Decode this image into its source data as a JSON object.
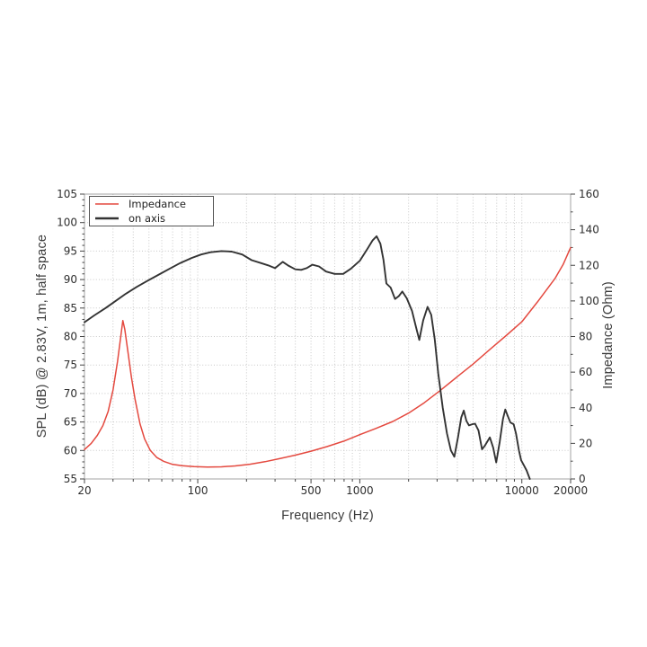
{
  "chart_data": {
    "type": "line",
    "title": "",
    "xlabel": "Frequency (Hz)",
    "ylabel_left": "SPL (dB) @ 2.83V, 1m, half space",
    "ylabel_right": "Impedance (Ohm)",
    "x_scale": "log",
    "x_range": [
      20,
      20000
    ],
    "x_ticks_labeled": [
      {
        "value": 20,
        "label": "20"
      },
      {
        "value": 100,
        "label": "100"
      },
      {
        "value": 500,
        "label": "500"
      },
      {
        "value": 1000,
        "label": "1000"
      },
      {
        "value": 10000,
        "label": "10000"
      },
      {
        "value": 20000,
        "label": "20000"
      }
    ],
    "y_left": {
      "min": 55,
      "max": 105,
      "tick_step": 5,
      "minor_step": 1,
      "tick_labels": [
        "55",
        "60",
        "65",
        "70",
        "75",
        "80",
        "85",
        "90",
        "95",
        "100",
        "105"
      ]
    },
    "y_right": {
      "min": 0,
      "max": 160,
      "tick_step": 20,
      "minor_step": 10,
      "tick_labels": [
        "0",
        "20",
        "40",
        "60",
        "80",
        "100",
        "120",
        "140",
        "160"
      ]
    },
    "grid": "dotted, vertical at log minor positions, horizontal every 5 dB",
    "legend_position": "upper left",
    "legend": [
      {
        "label": "Impedance",
        "color": "#e4493f"
      },
      {
        "label": "on axis",
        "color": "#333333"
      }
    ],
    "series": [
      {
        "name": "Impedance",
        "axis": "right",
        "units": "Ohm",
        "color": "#e4493f",
        "points": [
          [
            20,
            16.5
          ],
          [
            22,
            20
          ],
          [
            24,
            24.5
          ],
          [
            26,
            30
          ],
          [
            28,
            38
          ],
          [
            30,
            50
          ],
          [
            32,
            66
          ],
          [
            33.5,
            80
          ],
          [
            34.5,
            89
          ],
          [
            35.5,
            84
          ],
          [
            37,
            72
          ],
          [
            39,
            57
          ],
          [
            41,
            45
          ],
          [
            44,
            31
          ],
          [
            47,
            22.5
          ],
          [
            51,
            16
          ],
          [
            56,
            12
          ],
          [
            62,
            9.8
          ],
          [
            70,
            8.2
          ],
          [
            80,
            7.4
          ],
          [
            95,
            6.9
          ],
          [
            115,
            6.7
          ],
          [
            140,
            6.8
          ],
          [
            170,
            7.3
          ],
          [
            210,
            8.3
          ],
          [
            260,
            9.7
          ],
          [
            320,
            11.4
          ],
          [
            400,
            13.4
          ],
          [
            500,
            15.6
          ],
          [
            630,
            18.2
          ],
          [
            800,
            21.3
          ],
          [
            1000,
            24.9
          ],
          [
            1250,
            28.3
          ],
          [
            1600,
            32.3
          ],
          [
            2000,
            37.0
          ],
          [
            2500,
            42.8
          ],
          [
            3150,
            49.8
          ],
          [
            4000,
            57.5
          ],
          [
            5000,
            64.5
          ],
          [
            6300,
            72.5
          ],
          [
            8000,
            80.5
          ],
          [
            10000,
            88.3
          ],
          [
            12500,
            99.5
          ],
          [
            16000,
            112.5
          ],
          [
            18000,
            120.5
          ],
          [
            20000,
            130.0
          ]
        ]
      },
      {
        "name": "on axis",
        "axis": "left",
        "units": "dB",
        "color": "#333333",
        "points": [
          [
            20,
            82.5
          ],
          [
            23,
            83.7
          ],
          [
            27,
            85.0
          ],
          [
            31,
            86.2
          ],
          [
            36,
            87.5
          ],
          [
            42,
            88.7
          ],
          [
            49,
            89.8
          ],
          [
            57,
            90.8
          ],
          [
            67,
            91.9
          ],
          [
            78,
            92.9
          ],
          [
            92,
            93.8
          ],
          [
            105,
            94.4
          ],
          [
            120,
            94.8
          ],
          [
            140,
            95.0
          ],
          [
            162,
            94.9
          ],
          [
            188,
            94.4
          ],
          [
            215,
            93.4
          ],
          [
            245,
            92.9
          ],
          [
            272,
            92.5
          ],
          [
            300,
            92.0
          ],
          [
            335,
            93.1
          ],
          [
            365,
            92.4
          ],
          [
            400,
            91.8
          ],
          [
            435,
            91.7
          ],
          [
            470,
            92.0
          ],
          [
            510,
            92.6
          ],
          [
            560,
            92.3
          ],
          [
            620,
            91.4
          ],
          [
            700,
            91.0
          ],
          [
            790,
            91.0
          ],
          [
            880,
            91.9
          ],
          [
            1000,
            93.3
          ],
          [
            1120,
            95.5
          ],
          [
            1200,
            96.9
          ],
          [
            1270,
            97.6
          ],
          [
            1340,
            96.3
          ],
          [
            1400,
            93.5
          ],
          [
            1460,
            89.3
          ],
          [
            1550,
            88.6
          ],
          [
            1650,
            86.6
          ],
          [
            1740,
            87.1
          ],
          [
            1830,
            87.9
          ],
          [
            1950,
            86.7
          ],
          [
            2100,
            84.5
          ],
          [
            2230,
            81.5
          ],
          [
            2330,
            79.4
          ],
          [
            2460,
            82.8
          ],
          [
            2620,
            85.2
          ],
          [
            2760,
            83.8
          ],
          [
            2900,
            79.5
          ],
          [
            3050,
            73.5
          ],
          [
            3250,
            67.5
          ],
          [
            3450,
            63.0
          ],
          [
            3650,
            60.0
          ],
          [
            3830,
            58.9
          ],
          [
            4050,
            62.5
          ],
          [
            4230,
            65.8
          ],
          [
            4380,
            67.0
          ],
          [
            4550,
            65.2
          ],
          [
            4720,
            64.4
          ],
          [
            4950,
            64.6
          ],
          [
            5150,
            64.7
          ],
          [
            5400,
            63.5
          ],
          [
            5680,
            60.2
          ],
          [
            5900,
            60.8
          ],
          [
            6350,
            62.3
          ],
          [
            6650,
            60.5
          ],
          [
            6950,
            57.9
          ],
          [
            7300,
            61.5
          ],
          [
            7650,
            65.5
          ],
          [
            7900,
            67.2
          ],
          [
            8200,
            66.0
          ],
          [
            8500,
            64.9
          ],
          [
            8900,
            64.6
          ],
          [
            9200,
            63.0
          ],
          [
            9600,
            60.0
          ],
          [
            9900,
            58.3
          ],
          [
            10300,
            57.4
          ],
          [
            10700,
            56.5
          ],
          [
            11200,
            55.0
          ]
        ]
      }
    ],
    "colors": {
      "impedance": "#e4493f",
      "on_axis": "#333333",
      "grid": "#c8c8c8",
      "spine": "#a3a3a3",
      "tick": "#444444",
      "tick_text": "#2e2e2e",
      "title_text": "#3a3a3a",
      "background": "#ffffff",
      "legend_border": "#555555"
    }
  }
}
